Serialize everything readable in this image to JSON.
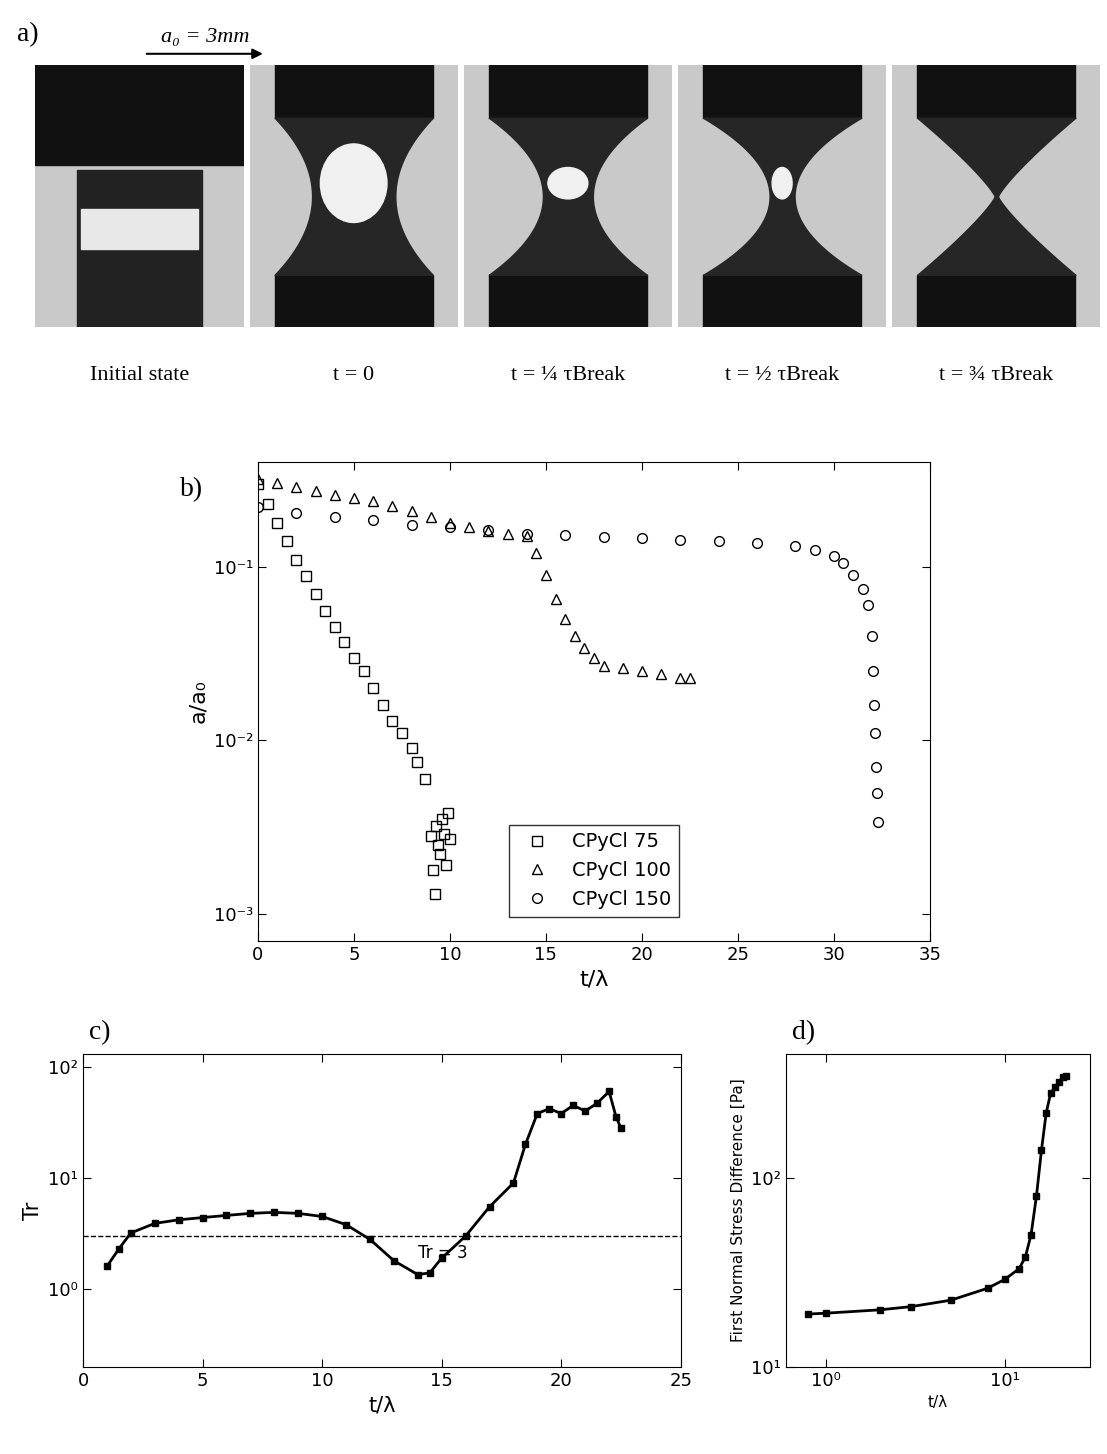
{
  "panel_a": {
    "label": "a)",
    "scale_label": "a₀ = 3mm",
    "frames": [
      "Initial state",
      "t = 0",
      "t = ¼ τBreak",
      "t = ½ τBreak",
      "t = ¾ τBreak"
    ]
  },
  "chart_data": [
    {
      "type": "scatter",
      "title": "b)",
      "xlabel": "t/λ",
      "ylabel": "a/a₀",
      "log": "y",
      "xlim": [
        0,
        35
      ],
      "ylim": [
        0.0007,
        0.4
      ],
      "xticks": [
        0,
        5,
        10,
        15,
        20,
        25,
        30,
        35
      ],
      "yticks": [
        {
          "value": 0.001,
          "label": "10⁻³"
        },
        {
          "value": 0.01,
          "label": "10⁻²"
        },
        {
          "value": 0.1,
          "label": "10⁻¹"
        }
      ],
      "legend": "lower center",
      "series": [
        {
          "name": "CPyCl 75",
          "color": "#000000",
          "marker": "square",
          "x": [
            0,
            0.5,
            1,
            1.5,
            2,
            2.5,
            3,
            3.5,
            4,
            4.5,
            5,
            5.5,
            6,
            6.5,
            7,
            7.5,
            8,
            8.3,
            8.7,
            9.0,
            9.1,
            9.2,
            9.3,
            9.4,
            9.5,
            9.6,
            9.7,
            9.8,
            9.9,
            10.0
          ],
          "values": [
            0.3,
            0.23,
            0.18,
            0.14,
            0.11,
            0.088,
            0.07,
            0.056,
            0.045,
            0.037,
            0.03,
            0.025,
            0.02,
            0.016,
            0.013,
            0.011,
            0.009,
            0.0075,
            0.006,
            0.0028,
            0.0018,
            0.0013,
            0.0032,
            0.0025,
            0.0022,
            0.0035,
            0.0029,
            0.0019,
            0.0038,
            0.0027
          ]
        },
        {
          "name": "CPyCl 100",
          "color": "#000000",
          "marker": "triangle",
          "x": [
            0,
            1,
            2,
            3,
            4,
            5,
            6,
            7,
            8,
            9,
            10,
            11,
            12,
            13,
            14,
            14.5,
            15,
            15.5,
            16,
            16.5,
            17,
            17.5,
            18,
            19,
            20,
            21,
            22,
            22.5
          ],
          "values": [
            0.32,
            0.305,
            0.29,
            0.275,
            0.26,
            0.25,
            0.24,
            0.225,
            0.21,
            0.195,
            0.18,
            0.17,
            0.16,
            0.155,
            0.15,
            0.12,
            0.09,
            0.065,
            0.05,
            0.04,
            0.034,
            0.03,
            0.027,
            0.026,
            0.025,
            0.024,
            0.023,
            0.023
          ]
        },
        {
          "name": "CPyCl 150",
          "color": "#000000",
          "marker": "circle",
          "x": [
            0,
            2,
            4,
            6,
            8,
            10,
            12,
            14,
            16,
            18,
            20,
            22,
            24,
            26,
            28,
            29,
            30,
            30.5,
            31,
            31.5,
            31.8,
            32,
            32.05,
            32.1,
            32.15,
            32.2,
            32.25,
            32.3
          ],
          "values": [
            0.22,
            0.205,
            0.195,
            0.185,
            0.175,
            0.17,
            0.162,
            0.155,
            0.152,
            0.149,
            0.146,
            0.143,
            0.14,
            0.137,
            0.132,
            0.125,
            0.115,
            0.105,
            0.09,
            0.075,
            0.06,
            0.04,
            0.025,
            0.016,
            0.011,
            0.007,
            0.005,
            0.0034
          ]
        }
      ]
    },
    {
      "type": "line",
      "title": "c)",
      "xlabel": "t/λ",
      "ylabel": "Tr",
      "log": "y",
      "xlim": [
        0,
        25
      ],
      "ylim": [
        0.2,
        130
      ],
      "xticks": [
        0,
        5,
        10,
        15,
        20,
        25
      ],
      "yticks": [
        {
          "value": 1,
          "label": "10⁰"
        },
        {
          "value": 10,
          "label": "10¹"
        },
        {
          "value": 100,
          "label": "10²"
        }
      ],
      "reference_lines": [
        {
          "value": 3,
          "label": "Tr = 3",
          "line_style": "dashed"
        }
      ],
      "series": [
        {
          "color": "#000000",
          "marker": "square",
          "line_style": "solid",
          "x": [
            1,
            1.5,
            2,
            3,
            4,
            5,
            6,
            7,
            8,
            9,
            10,
            11,
            12,
            13,
            14,
            14.5,
            15,
            16,
            17,
            18,
            18.5,
            19,
            19.5,
            20,
            20.5,
            21,
            21.5,
            22,
            22.3,
            22.5
          ],
          "values": [
            1.6,
            2.3,
            3.2,
            3.9,
            4.2,
            4.4,
            4.6,
            4.8,
            4.9,
            4.8,
            4.5,
            3.8,
            2.8,
            1.8,
            1.35,
            1.4,
            1.9,
            3,
            5.5,
            9,
            20,
            38,
            42,
            38,
            45,
            40,
            47,
            60,
            35,
            28
          ]
        }
      ]
    },
    {
      "type": "line",
      "title": "d)",
      "xlabel": "t/λ",
      "ylabel": "First Normal Stress Difference [Pa]",
      "log": true,
      "xlim": [
        0.6,
        30
      ],
      "ylim": [
        10,
        450
      ],
      "xticks": [
        {
          "value": 1,
          "label": "10⁰"
        },
        {
          "value": 10,
          "label": "10¹"
        }
      ],
      "yticks": [
        {
          "value": 10,
          "label": "10¹"
        },
        {
          "value": 100,
          "label": "10²"
        }
      ],
      "series": [
        {
          "color": "#000000",
          "marker": "square",
          "line_style": "solid",
          "x": [
            0.8,
            1,
            2,
            3,
            5,
            8,
            10,
            12,
            13,
            14,
            15,
            16,
            17,
            18,
            19,
            20,
            21,
            22
          ],
          "values": [
            19,
            19.2,
            20,
            20.8,
            22.5,
            26,
            29,
            33,
            38,
            50,
            80,
            140,
            220,
            280,
            300,
            320,
            340,
            345
          ]
        }
      ]
    }
  ]
}
